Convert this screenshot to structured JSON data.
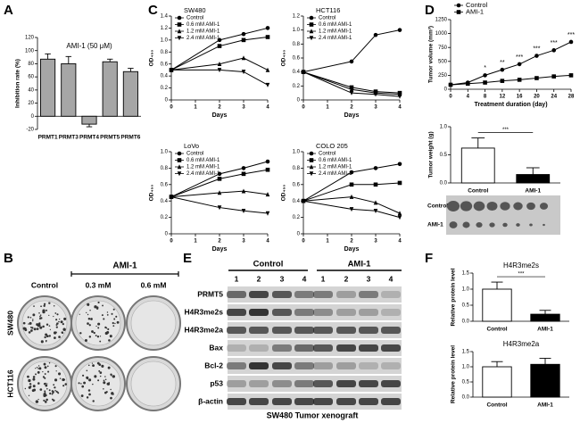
{
  "panel_labels": [
    "A",
    "B",
    "C",
    "D",
    "E",
    "F"
  ],
  "panel_b": {
    "header": "AMI-1",
    "columns": [
      "Control",
      "0.3 mM",
      "0.6 mM"
    ],
    "rows": [
      "SW480",
      "HCT116"
    ]
  },
  "panel_d_images": {
    "rows": [
      "Control",
      "AMI-1"
    ]
  },
  "panel_e": {
    "groups": [
      "Control",
      "AMI-1"
    ],
    "lanes": [
      "1",
      "2",
      "3",
      "4",
      "1",
      "2",
      "3",
      "4"
    ],
    "rows": [
      "PRMT5",
      "H4R3me2s",
      "H4R3me2a",
      "Bax",
      "Bcl-2",
      "p53",
      "β-actin"
    ],
    "caption": "SW480 Tumor xenograft"
  },
  "chart_data": [
    {
      "type": "bar",
      "title": "AMI-1 (50 μM)",
      "ylabel": "Inhibition rate (%)",
      "categories": [
        "PRMT1",
        "PRMT3",
        "PRMT4",
        "PRMT5",
        "PRMT6"
      ],
      "values": [
        87,
        80,
        -12,
        83,
        68
      ],
      "errors": [
        8,
        11,
        4,
        4,
        5
      ],
      "colors": [
        "#a6a6a6",
        "#a6a6a6",
        "#a6a6a6",
        "#a6a6a6",
        "#a6a6a6"
      ],
      "ylim": [
        -20,
        120
      ],
      "yticks": [
        -20,
        0,
        20,
        40,
        60,
        80,
        100,
        120
      ]
    },
    {
      "type": "line",
      "title": "SW480",
      "ylabel": "OD₄₅₀",
      "xlabel": "Days",
      "x": [
        0,
        2,
        3,
        4
      ],
      "xlim": [
        0,
        4
      ],
      "xticks": [
        0,
        1,
        2,
        3,
        4
      ],
      "ylim": [
        0,
        1.4
      ],
      "yticks": [
        0,
        0.2,
        0.4,
        0.6,
        0.8,
        {
          "value": 1,
          "label": "1.0"
        },
        1.2,
        1.4
      ],
      "series": [
        {
          "name": "Control",
          "color": "#000",
          "marker": "circle",
          "values": [
            0.5,
            1.0,
            1.1,
            1.2
          ]
        },
        {
          "name": "0.6 mM AMI-1",
          "color": "#000",
          "marker": "square",
          "values": [
            0.5,
            0.9,
            1.0,
            1.05
          ]
        },
        {
          "name": "1.2 mM AMI-1",
          "color": "#000",
          "marker": "triangle",
          "values": [
            0.5,
            0.6,
            0.7,
            0.5
          ]
        },
        {
          "name": "2.4 mM AMI-1",
          "color": "#000",
          "marker": "triangle-down",
          "values": [
            0.5,
            0.5,
            0.47,
            0.25
          ]
        }
      ]
    },
    {
      "type": "line",
      "title": "HCT116",
      "ylabel": "OD₄₅₀",
      "xlabel": "Days",
      "x": [
        0,
        2,
        3,
        4
      ],
      "xlim": [
        0,
        4
      ],
      "xticks": [
        0,
        1,
        2,
        3,
        4
      ],
      "ylim": [
        0,
        1.2
      ],
      "yticks": [
        0,
        0.2,
        0.4,
        0.6,
        0.8,
        {
          "value": 1,
          "label": "1.0"
        },
        1.2
      ],
      "series": [
        {
          "name": "Control",
          "color": "#000",
          "marker": "circle",
          "values": [
            0.4,
            0.55,
            0.93,
            1.0
          ]
        },
        {
          "name": "0.6 mM AMI-1",
          "color": "#000",
          "marker": "square",
          "values": [
            0.4,
            0.18,
            0.12,
            0.1
          ]
        },
        {
          "name": "1.2 mM AMI-1",
          "color": "#000",
          "marker": "triangle",
          "values": [
            0.4,
            0.15,
            0.1,
            0.08
          ]
        },
        {
          "name": "2.4 mM AMI-1",
          "color": "#000",
          "marker": "triangle-down",
          "values": [
            0.4,
            0.1,
            0.08,
            0.05
          ]
        }
      ]
    },
    {
      "type": "line",
      "title": "LoVo",
      "ylabel": "OD₄₅₀",
      "xlabel": "Days",
      "x": [
        0,
        2,
        3,
        4
      ],
      "xlim": [
        0,
        4
      ],
      "xticks": [
        0,
        1,
        2,
        3,
        4
      ],
      "ylim": [
        0,
        1.0
      ],
      "yticks": [
        0,
        0.2,
        0.4,
        0.6,
        0.8,
        {
          "value": 1,
          "label": "1.0"
        }
      ],
      "series": [
        {
          "name": "Control",
          "color": "#000",
          "marker": "circle",
          "values": [
            0.45,
            0.73,
            0.8,
            0.88
          ]
        },
        {
          "name": "0.6 mM AMI-1",
          "color": "#000",
          "marker": "square",
          "values": [
            0.45,
            0.67,
            0.73,
            0.78
          ]
        },
        {
          "name": "1.2 mM AMI-1",
          "color": "#000",
          "marker": "triangle",
          "values": [
            0.45,
            0.5,
            0.52,
            0.48
          ]
        },
        {
          "name": "2.4 mM AMI-1",
          "color": "#000",
          "marker": "triangle-down",
          "values": [
            0.45,
            0.32,
            0.28,
            0.25
          ]
        }
      ]
    },
    {
      "type": "line",
      "title": "COLO 205",
      "ylabel": "OD₄₅₀",
      "xlabel": "Days",
      "x": [
        0,
        2,
        3,
        4
      ],
      "xlim": [
        0,
        4
      ],
      "xticks": [
        0,
        1,
        2,
        3,
        4
      ],
      "ylim": [
        0,
        1.0
      ],
      "yticks": [
        0,
        0.2,
        0.4,
        0.6,
        0.8,
        {
          "value": 1,
          "label": "1.0"
        }
      ],
      "series": [
        {
          "name": "Control",
          "color": "#000",
          "marker": "circle",
          "values": [
            0.4,
            0.75,
            0.8,
            0.85
          ]
        },
        {
          "name": "0.6 mM AMI-1",
          "color": "#000",
          "marker": "square",
          "values": [
            0.4,
            0.6,
            0.6,
            0.62
          ]
        },
        {
          "name": "1.2 mM AMI-1",
          "color": "#000",
          "marker": "triangle",
          "values": [
            0.4,
            0.45,
            0.38,
            0.25
          ]
        },
        {
          "name": "2.4 mM AMI-1",
          "color": "#000",
          "marker": "triangle-down",
          "values": [
            0.4,
            0.3,
            0.28,
            0.2
          ]
        }
      ]
    },
    {
      "type": "line",
      "ylabel": "Tumor volume (mm³)",
      "xlabel": "Treatment duration (day)",
      "x": [
        0,
        4,
        8,
        12,
        16,
        20,
        24,
        28
      ],
      "xlim": [
        0,
        28
      ],
      "xticks": [
        0,
        4,
        8,
        12,
        16,
        20,
        24,
        28
      ],
      "ylim": [
        0,
        1250
      ],
      "yticks": [
        0,
        250,
        500,
        750,
        1000,
        1250
      ],
      "series": [
        {
          "name": "Control",
          "color": "#000",
          "marker": "circle",
          "values": [
            80,
            120,
            250,
            350,
            450,
            600,
            700,
            850
          ]
        },
        {
          "name": "AMI-1",
          "color": "#000",
          "marker": "square",
          "values": [
            80,
            100,
            120,
            150,
            170,
            200,
            230,
            250
          ]
        }
      ],
      "annotations": [
        {
          "x": 8,
          "text": "*"
        },
        {
          "x": 12,
          "text": "**"
        },
        {
          "x": 16,
          "text": "***"
        },
        {
          "x": 20,
          "text": "***"
        },
        {
          "x": 24,
          "text": "***"
        },
        {
          "x": 28,
          "text": "***"
        }
      ]
    },
    {
      "type": "bar",
      "ylabel": "Tumor weight (g)",
      "categories": [
        "Control",
        "AMI-1"
      ],
      "values": [
        0.62,
        0.15
      ],
      "errors": [
        0.18,
        0.12
      ],
      "colors": [
        "#fff",
        "#000"
      ],
      "ylim": [
        0,
        1.0
      ],
      "yticks": [
        {
          "value": 0,
          "label": "0.0"
        },
        0.5,
        {
          "value": 1,
          "label": "1.0"
        }
      ],
      "significance": "***"
    },
    {
      "type": "bar",
      "title": "H4R3me2s",
      "ylabel": "Relative protein level",
      "categories": [
        "Control",
        "AMI-1"
      ],
      "values": [
        1.0,
        0.22
      ],
      "errors": [
        0.22,
        0.12
      ],
      "colors": [
        "#fff",
        "#000"
      ],
      "ylim": [
        0,
        1.5
      ],
      "yticks": [
        {
          "value": 0,
          "label": "0.0"
        },
        0.5,
        {
          "value": 1,
          "label": "1.0"
        },
        1.5
      ],
      "significance": "***"
    },
    {
      "type": "bar",
      "title": "H4R3me2a",
      "ylabel": "Relative protein level",
      "categories": [
        "Control",
        "AMI-1"
      ],
      "values": [
        1.0,
        1.08
      ],
      "errors": [
        0.17,
        0.2
      ],
      "colors": [
        "#fff",
        "#000"
      ],
      "ylim": [
        0,
        1.5
      ],
      "yticks": [
        {
          "value": 0,
          "label": "0.0"
        },
        0.5,
        {
          "value": 1,
          "label": "1.0"
        },
        1.5
      ]
    }
  ]
}
